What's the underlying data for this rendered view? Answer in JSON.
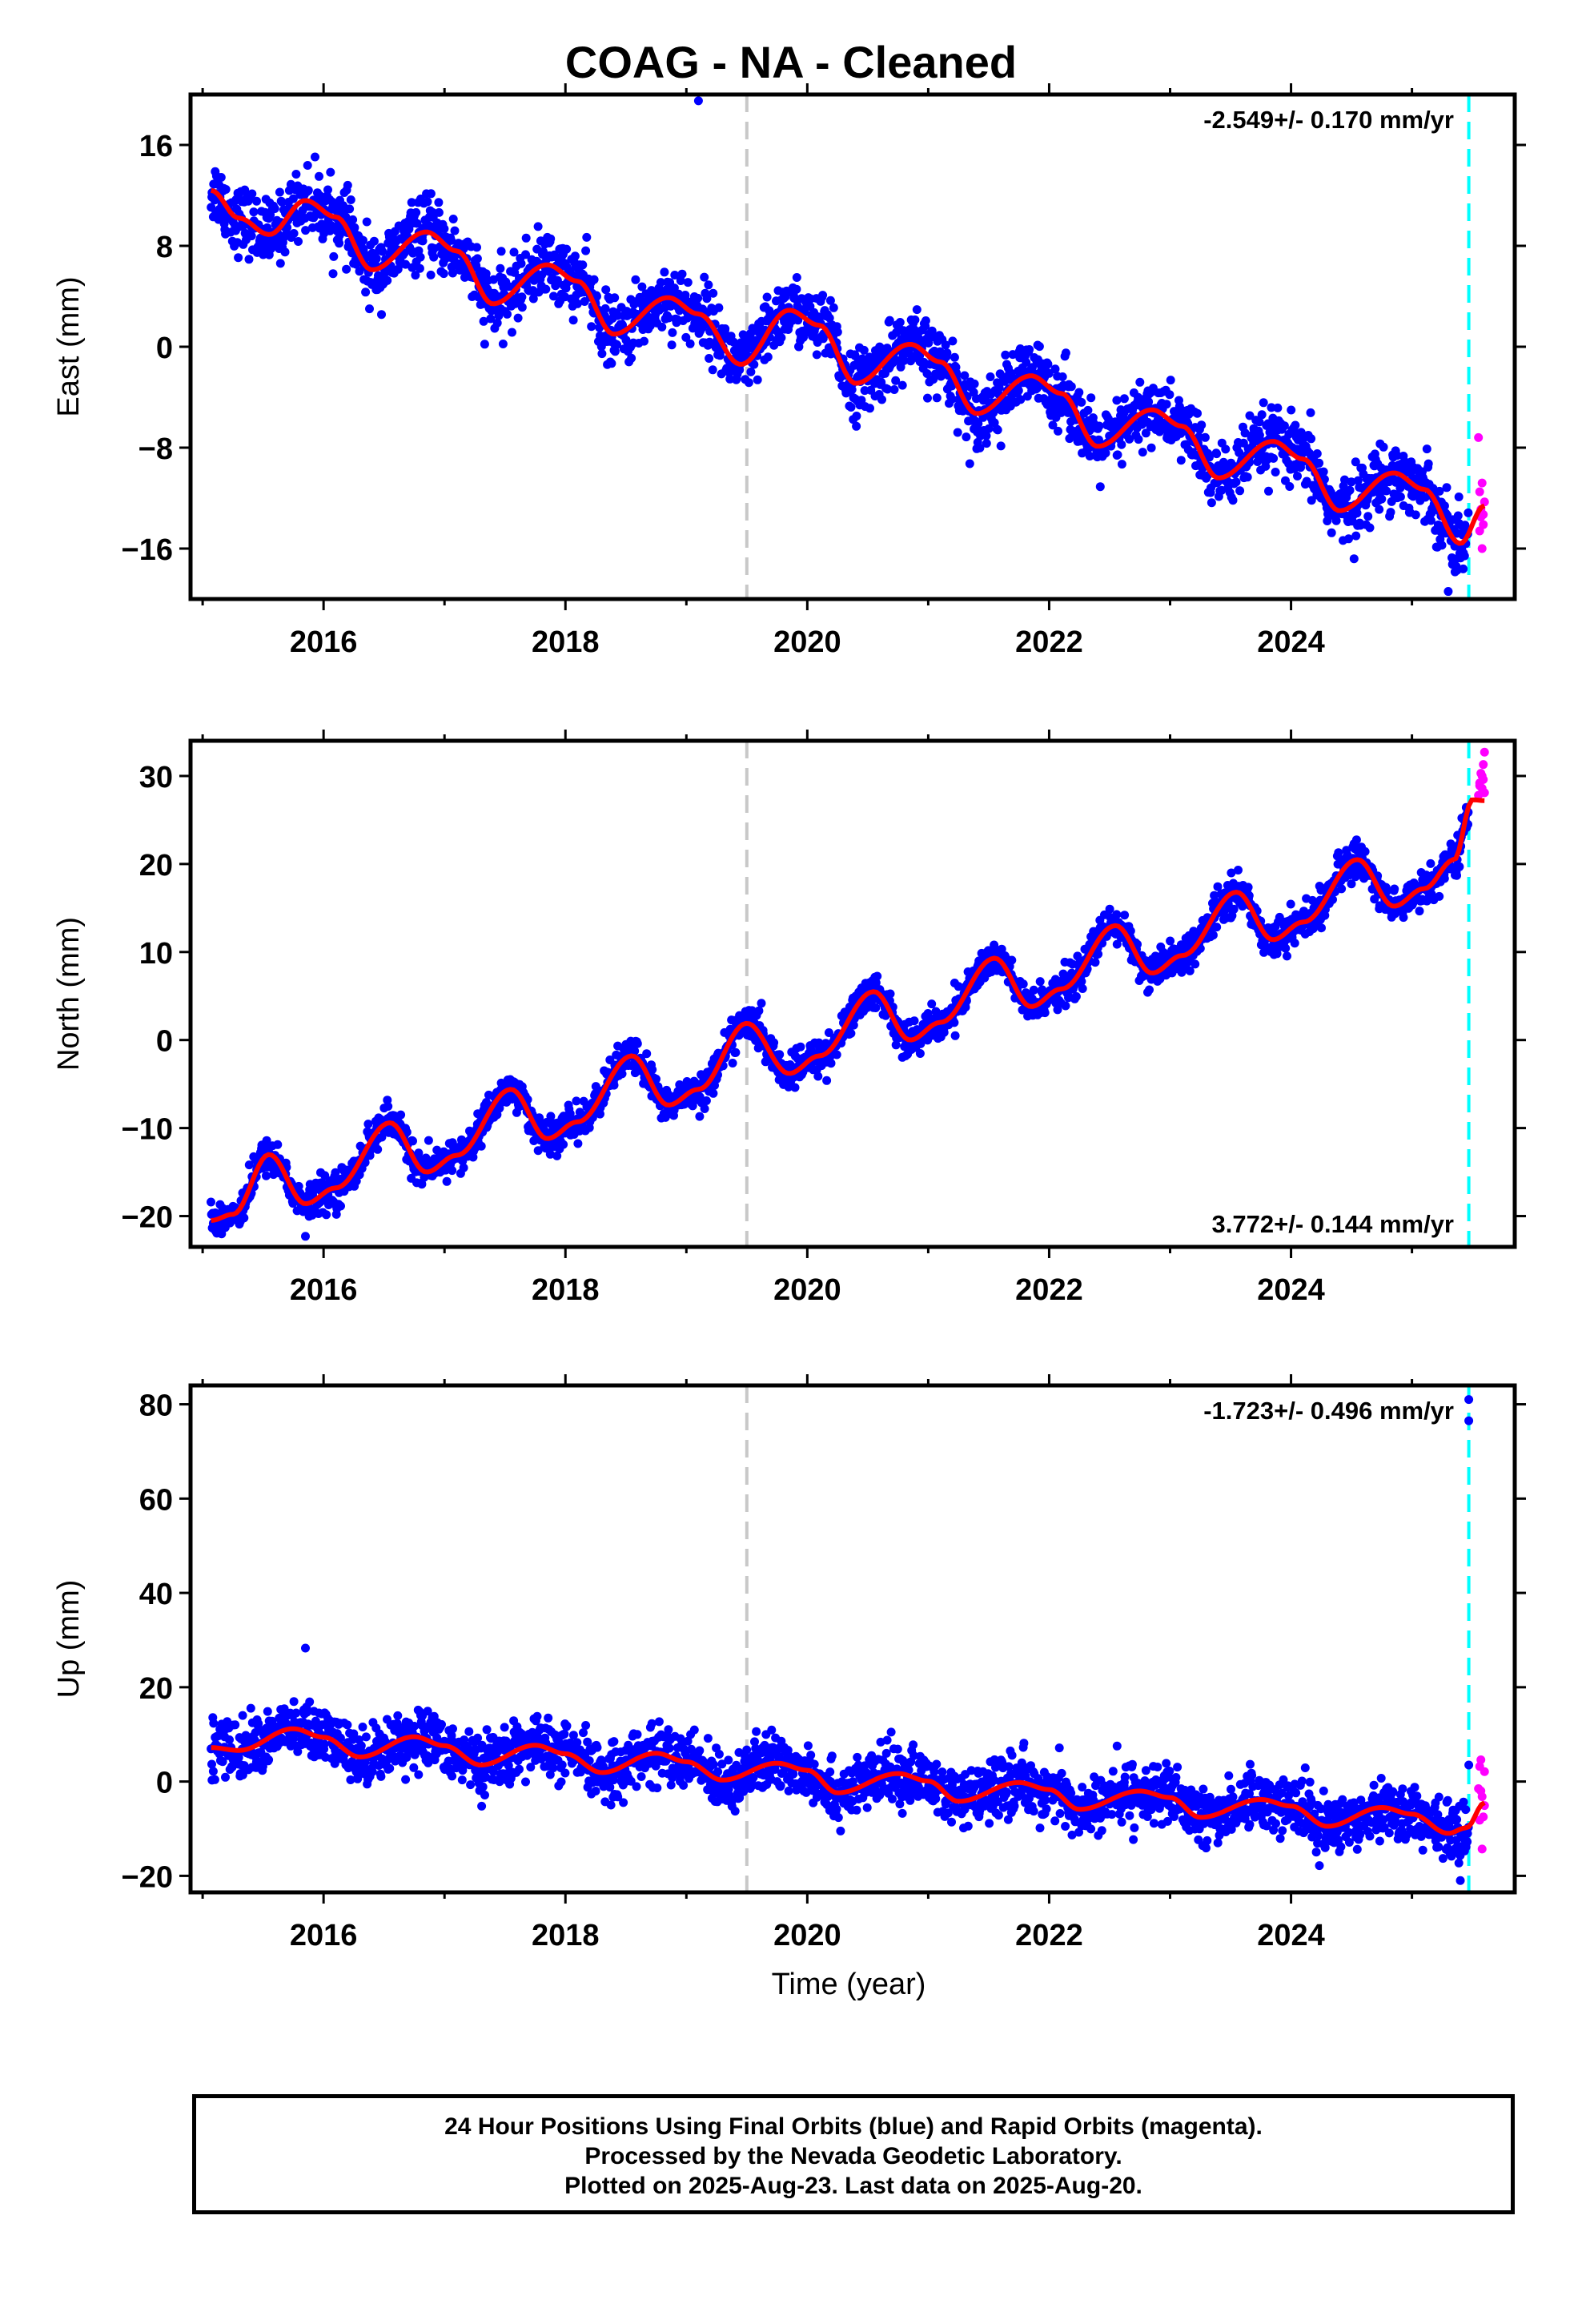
{
  "title": "COAG  - NA - Cleaned",
  "xlabel": "Time (year)",
  "caption": [
    "24 Hour Positions Using Final Orbits (blue) and Rapid Orbits (magenta).",
    "Processed by the Nevada Geodetic Laboratory.",
    "Plotted on 2025-Aug-23. Last data on 2025-Aug-20."
  ],
  "colors": {
    "final_orbits": "#0000ff",
    "rapid_orbits": "#ff00ff",
    "model": "#ff0000",
    "dashed_gray": "#c8c8c8",
    "dashed_cyan": "#00ffff"
  },
  "chart_data": [
    {
      "type": "scatter",
      "component": "east",
      "ylabel": "East (mm)",
      "rate_label": "-2.549+/- 0.170 mm/yr",
      "rate_position": "top-right",
      "xlim": [
        2014.9,
        2025.85
      ],
      "ylim": [
        -20,
        20
      ],
      "xticks": [
        2016,
        2018,
        2020,
        2022,
        2024
      ],
      "yticks": [
        -16,
        -8,
        0,
        8,
        16
      ],
      "ytick_labels": [
        "−16",
        "−8",
        "0",
        "8",
        "16"
      ],
      "grid": false,
      "vlines": [
        {
          "x": 2019.5,
          "color": "#c8c8c8",
          "style": "dashed"
        },
        {
          "x": 2025.47,
          "color": "#00ffff",
          "style": "dashed"
        }
      ],
      "model": {
        "x_start": 2015.07,
        "x_end": 2025.6,
        "y_start": 12.0,
        "rate": -2.549,
        "annual_amplitude": 2.5,
        "annual_phase_year": 2015.85,
        "curve_points": [
          [
            2015.07,
            12.4
          ],
          [
            2015.3,
            10.2
          ],
          [
            2015.55,
            8.9
          ],
          [
            2015.85,
            11.6
          ],
          [
            2016.1,
            10.3
          ],
          [
            2016.4,
            6.1
          ],
          [
            2016.85,
            9.1
          ],
          [
            2017.1,
            7.6
          ],
          [
            2017.4,
            3.4
          ],
          [
            2017.85,
            6.5
          ],
          [
            2018.1,
            5.2
          ],
          [
            2018.4,
            1.0
          ],
          [
            2018.85,
            3.9
          ],
          [
            2019.1,
            2.6
          ],
          [
            2019.45,
            -1.4
          ],
          [
            2019.85,
            2.9
          ],
          [
            2020.1,
            1.7
          ],
          [
            2020.4,
            -2.9
          ],
          [
            2020.85,
            0.2
          ],
          [
            2021.1,
            -1.2
          ],
          [
            2021.4,
            -5.3
          ],
          [
            2021.85,
            -2.3
          ],
          [
            2022.1,
            -3.7
          ],
          [
            2022.4,
            -7.9
          ],
          [
            2022.85,
            -5.0
          ],
          [
            2023.1,
            -6.3
          ],
          [
            2023.4,
            -10.4
          ],
          [
            2023.85,
            -7.5
          ],
          [
            2024.1,
            -8.9
          ],
          [
            2024.4,
            -13.0
          ],
          [
            2024.85,
            -10.0
          ],
          [
            2025.1,
            -11.3
          ],
          [
            2025.4,
            -15.6
          ],
          [
            2025.6,
            -12.6
          ]
        ],
        "scatter_sigma": 1.3
      },
      "outliers": [
        [
          2019.1,
          19.5
        ],
        [
          2025.3,
          -19.4
        ]
      ],
      "rapid_points": [
        [
          2025.55,
          -7.2
        ],
        [
          2025.56,
          -11.5
        ],
        [
          2025.57,
          -13.5
        ],
        [
          2025.58,
          -10.8
        ],
        [
          2025.59,
          -14.1
        ],
        [
          2025.6,
          -12.3
        ],
        [
          2025.58,
          -16.0
        ],
        [
          2025.56,
          -14.6
        ],
        [
          2025.57,
          -12.9
        ],
        [
          2025.59,
          -13.3
        ]
      ]
    },
    {
      "type": "scatter",
      "component": "north",
      "ylabel": "North (mm)",
      "rate_label": "3.772+/- 0.144 mm/yr",
      "rate_position": "bottom-right",
      "xlim": [
        2014.9,
        2025.85
      ],
      "ylim": [
        -23.5,
        34
      ],
      "xticks": [
        2016,
        2018,
        2020,
        2022,
        2024
      ],
      "yticks": [
        -20,
        -10,
        0,
        10,
        20,
        30
      ],
      "ytick_labels": [
        "−20",
        "−10",
        "0",
        "10",
        "20",
        "30"
      ],
      "grid": false,
      "vlines": [
        {
          "x": 2019.5,
          "color": "#c8c8c8",
          "style": "dashed"
        },
        {
          "x": 2025.47,
          "color": "#00ffff",
          "style": "dashed"
        }
      ],
      "model": {
        "x_start": 2015.07,
        "x_end": 2025.6,
        "curve_points": [
          [
            2015.07,
            -20.5
          ],
          [
            2015.25,
            -19.8
          ],
          [
            2015.55,
            -13.0
          ],
          [
            2015.85,
            -18.6
          ],
          [
            2016.1,
            -16.8
          ],
          [
            2016.55,
            -9.4
          ],
          [
            2016.85,
            -15.0
          ],
          [
            2017.1,
            -13.1
          ],
          [
            2017.55,
            -5.6
          ],
          [
            2017.85,
            -11.2
          ],
          [
            2018.1,
            -9.3
          ],
          [
            2018.55,
            -1.8
          ],
          [
            2018.85,
            -7.4
          ],
          [
            2019.1,
            -5.6
          ],
          [
            2019.5,
            1.9
          ],
          [
            2019.85,
            -3.8
          ],
          [
            2020.1,
            -1.8
          ],
          [
            2020.55,
            5.5
          ],
          [
            2020.85,
            0.0
          ],
          [
            2021.1,
            2.0
          ],
          [
            2021.55,
            9.3
          ],
          [
            2021.85,
            3.8
          ],
          [
            2022.1,
            5.8
          ],
          [
            2022.55,
            13.0
          ],
          [
            2022.85,
            7.6
          ],
          [
            2023.1,
            9.6
          ],
          [
            2023.55,
            16.8
          ],
          [
            2023.85,
            11.4
          ],
          [
            2024.1,
            13.4
          ],
          [
            2024.55,
            20.5
          ],
          [
            2024.85,
            15.2
          ],
          [
            2025.1,
            17.2
          ],
          [
            2025.35,
            20.5
          ],
          [
            2025.5,
            27.3
          ],
          [
            2025.6,
            27.2
          ]
        ],
        "scatter_sigma": 1.0
      },
      "outliers": [
        [
          2015.85,
          -22.3
        ]
      ],
      "rapid_points": [
        [
          2025.55,
          27.8
        ],
        [
          2025.56,
          29.2
        ],
        [
          2025.57,
          30.3
        ],
        [
          2025.58,
          28.6
        ],
        [
          2025.59,
          31.3
        ],
        [
          2025.6,
          32.7
        ],
        [
          2025.58,
          30.0
        ],
        [
          2025.56,
          28.9
        ],
        [
          2025.59,
          29.6
        ],
        [
          2025.6,
          28.1
        ]
      ]
    },
    {
      "type": "scatter",
      "component": "up",
      "ylabel": "Up (mm)",
      "rate_label": "-1.723+/- 0.496 mm/yr",
      "rate_position": "top-right",
      "xlim": [
        2014.9,
        2025.85
      ],
      "ylim": [
        -23.5,
        84
      ],
      "xticks": [
        2016,
        2018,
        2020,
        2022,
        2024
      ],
      "yticks": [
        -20,
        0,
        20,
        40,
        60,
        80
      ],
      "ytick_labels": [
        "−20",
        "0",
        "20",
        "40",
        "60",
        "80"
      ],
      "grid": false,
      "vlines": [
        {
          "x": 2019.5,
          "color": "#c8c8c8",
          "style": "dashed"
        },
        {
          "x": 2025.47,
          "color": "#00ffff",
          "style": "dashed"
        }
      ],
      "model": {
        "x_start": 2015.07,
        "x_end": 2025.6,
        "curve_points": [
          [
            2015.07,
            7.2
          ],
          [
            2015.3,
            6.6
          ],
          [
            2015.75,
            11.2
          ],
          [
            2016.0,
            9.4
          ],
          [
            2016.3,
            5.2
          ],
          [
            2016.75,
            9.5
          ],
          [
            2017.0,
            7.6
          ],
          [
            2017.3,
            3.5
          ],
          [
            2017.75,
            7.7
          ],
          [
            2018.0,
            5.9
          ],
          [
            2018.3,
            1.9
          ],
          [
            2018.75,
            6.0
          ],
          [
            2019.0,
            4.2
          ],
          [
            2019.3,
            0.3
          ],
          [
            2019.75,
            3.9
          ],
          [
            2020.0,
            2.4
          ],
          [
            2020.25,
            -2.4
          ],
          [
            2020.75,
            1.7
          ],
          [
            2021.0,
            0.1
          ],
          [
            2021.25,
            -4.2
          ],
          [
            2021.75,
            -0.2
          ],
          [
            2022.0,
            -1.7
          ],
          [
            2022.25,
            -5.9
          ],
          [
            2022.75,
            -2.0
          ],
          [
            2023.0,
            -3.4
          ],
          [
            2023.25,
            -7.6
          ],
          [
            2023.75,
            -3.8
          ],
          [
            2024.0,
            -5.2
          ],
          [
            2024.3,
            -9.5
          ],
          [
            2024.75,
            -5.5
          ],
          [
            2025.0,
            -6.9
          ],
          [
            2025.3,
            -11.0
          ],
          [
            2025.45,
            -9.8
          ],
          [
            2025.6,
            -4.5
          ]
        ],
        "scatter_sigma": 3.0
      },
      "outliers": [
        [
          2025.47,
          81.0
        ],
        [
          2025.47,
          76.5
        ],
        [
          2025.47,
          3.5
        ],
        [
          2025.4,
          -21.0
        ],
        [
          2015.85,
          28.3
        ]
      ],
      "rapid_points": [
        [
          2025.55,
          -1.5
        ],
        [
          2025.56,
          3.2
        ],
        [
          2025.57,
          4.6
        ],
        [
          2025.58,
          -3.2
        ],
        [
          2025.59,
          -7.5
        ],
        [
          2025.6,
          -5.1
        ],
        [
          2025.58,
          -14.3
        ],
        [
          2025.56,
          -8.2
        ],
        [
          2025.57,
          -2.0
        ],
        [
          2025.6,
          2.1
        ]
      ]
    }
  ]
}
